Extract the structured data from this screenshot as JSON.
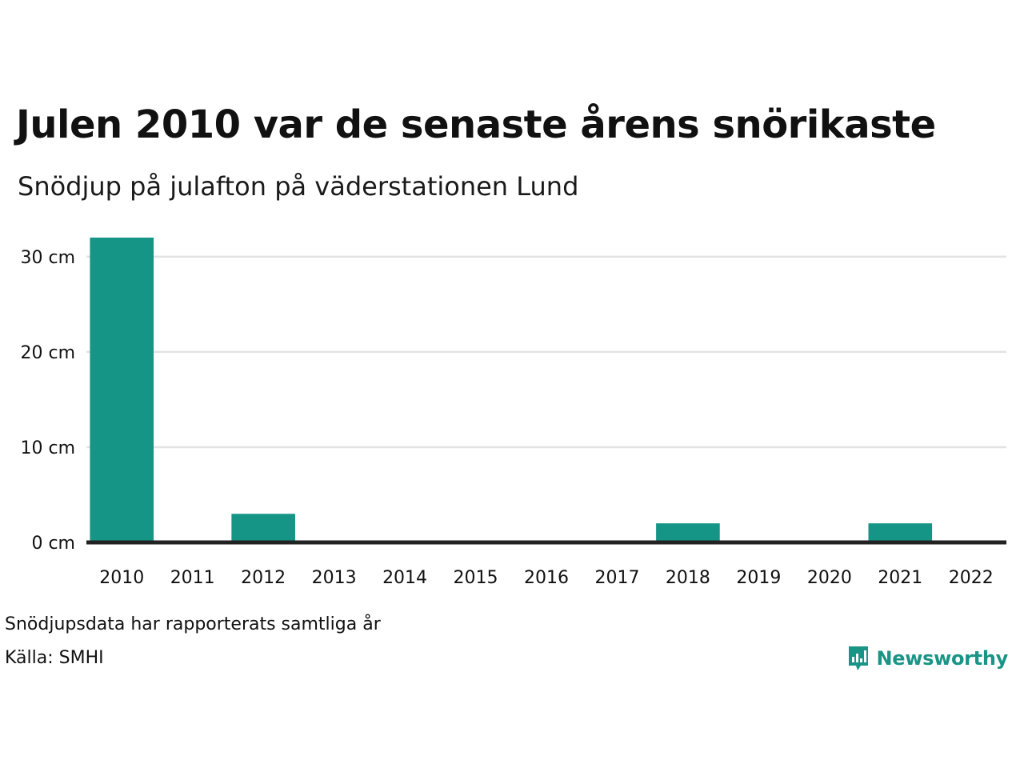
{
  "title": "Julen 2010 var de senaste årens snörikaste",
  "subtitle": "Snödjup på julafton på väderstationen Lund",
  "notes": {
    "reporting": "Snödjupsdata har rapporterats samtliga år",
    "source": "Källa: SMHI"
  },
  "brand": {
    "name": "Newsworthy",
    "color": "#1a9486"
  },
  "chart_data": {
    "type": "bar",
    "categories": [
      "2010",
      "2011",
      "2012",
      "2013",
      "2014",
      "2015",
      "2016",
      "2017",
      "2018",
      "2019",
      "2020",
      "2021",
      "2022"
    ],
    "values": [
      32,
      0,
      3,
      0,
      0,
      0,
      0,
      0,
      2,
      0,
      0,
      2,
      0
    ],
    "yticks": [
      0,
      10,
      20,
      30
    ],
    "ytick_labels": [
      "0 cm",
      "10 cm",
      "20 cm",
      "30 cm"
    ],
    "ylim": [
      0,
      32
    ],
    "grid": true,
    "colors": {
      "bar": "#149586",
      "grid": "#e3e3e3",
      "baseline": "#222222"
    }
  }
}
